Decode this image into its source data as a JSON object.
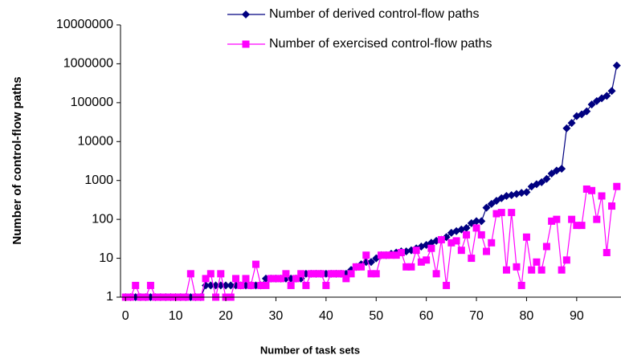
{
  "chart_data": {
    "type": "line",
    "xlabel": "Number of task sets",
    "ylabel": "Number of control-flow paths",
    "log_y": true,
    "x": [
      0,
      1,
      2,
      3,
      4,
      5,
      6,
      7,
      8,
      9,
      10,
      11,
      12,
      13,
      14,
      15,
      16,
      17,
      18,
      19,
      20,
      21,
      22,
      23,
      24,
      25,
      26,
      27,
      28,
      29,
      30,
      31,
      32,
      33,
      34,
      35,
      36,
      37,
      38,
      39,
      40,
      41,
      42,
      43,
      44,
      45,
      46,
      47,
      48,
      49,
      50,
      51,
      52,
      53,
      54,
      55,
      56,
      57,
      58,
      59,
      60,
      61,
      62,
      63,
      64,
      65,
      66,
      67,
      68,
      69,
      70,
      71,
      72,
      73,
      74,
      75,
      76,
      77,
      78,
      79,
      80,
      81,
      82,
      83,
      84,
      85,
      86,
      87,
      88,
      89,
      90,
      91,
      92,
      93,
      94,
      95,
      96,
      97,
      98
    ],
    "series": [
      {
        "name": "Number of derived control-flow paths",
        "color": "#000080",
        "marker": "diamond",
        "values": [
          1,
          1,
          1,
          1,
          1,
          1,
          1,
          1,
          1,
          1,
          1,
          1,
          1,
          1,
          1,
          1,
          2,
          2,
          2,
          2,
          2,
          2,
          2,
          2,
          2,
          2,
          2,
          2,
          3,
          3,
          3,
          3,
          3,
          3,
          3,
          3,
          4,
          4,
          4,
          4,
          4,
          4,
          4,
          4,
          4,
          5,
          6,
          7,
          8,
          8,
          10,
          12,
          12,
          13,
          14,
          15,
          15,
          16,
          18,
          20,
          22,
          25,
          28,
          30,
          35,
          45,
          50,
          55,
          60,
          80,
          90,
          90,
          200,
          250,
          300,
          350,
          400,
          420,
          450,
          480,
          500,
          700,
          800,
          900,
          1100,
          1500,
          1800,
          2000,
          22000,
          30000,
          45000,
          50000,
          60000,
          90000,
          110000,
          130000,
          150000,
          200000,
          900000
        ]
      },
      {
        "name": "Number of exercised control-flow paths",
        "color": "#ff00ff",
        "marker": "square",
        "values": [
          1,
          1,
          2,
          1,
          1,
          2,
          1,
          1,
          1,
          1,
          1,
          1,
          1,
          4,
          1,
          1,
          3,
          4,
          1,
          4,
          1,
          1,
          3,
          2,
          3,
          2,
          7,
          2,
          2,
          3,
          3,
          3,
          4,
          2,
          3,
          4,
          2,
          4,
          4,
          4,
          2,
          4,
          4,
          4,
          3,
          4,
          6,
          6,
          12,
          4,
          4,
          12,
          12,
          12,
          12,
          14,
          6,
          6,
          16,
          8,
          9,
          18,
          4,
          30,
          2,
          25,
          28,
          16,
          40,
          10,
          60,
          40,
          15,
          25,
          140,
          150,
          5,
          150,
          6,
          2,
          35,
          5,
          8,
          5,
          20,
          90,
          100,
          5,
          9,
          100,
          70,
          70,
          600,
          550,
          100,
          400,
          14,
          220,
          700
        ]
      }
    ],
    "xlim": [
      -1,
      99
    ],
    "xticks": [
      0,
      10,
      20,
      30,
      40,
      50,
      60,
      70,
      80,
      90
    ],
    "ylim": [
      1,
      10000000
    ],
    "yticks": [
      1,
      10,
      100,
      1000,
      10000,
      100000,
      1000000,
      10000000
    ],
    "legend": "top"
  }
}
